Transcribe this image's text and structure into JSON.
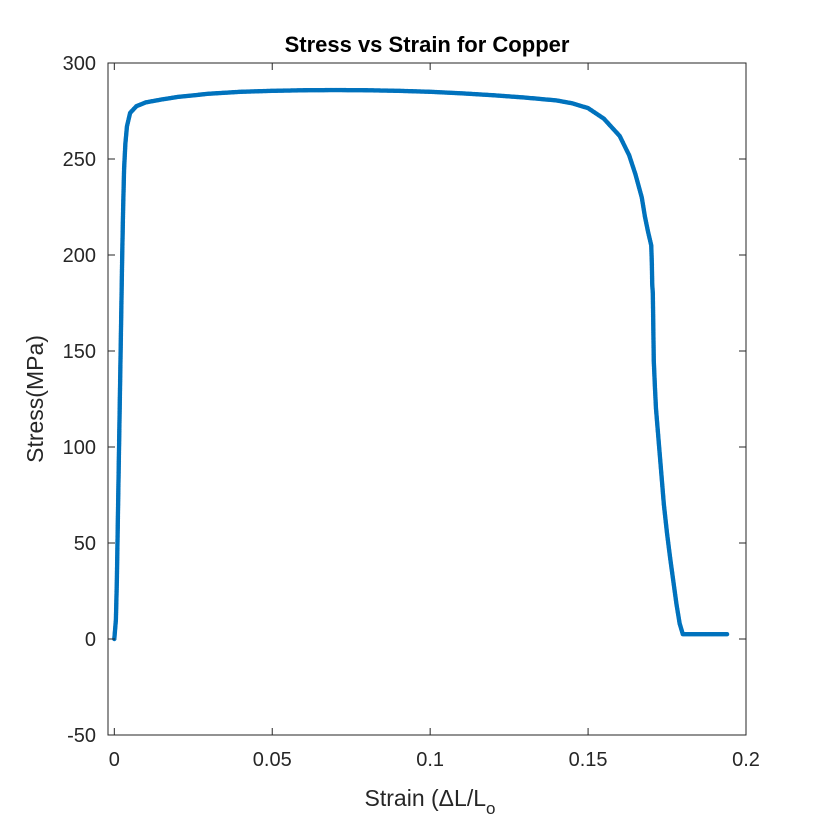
{
  "chart_data": {
    "type": "scatter",
    "title": "Stress vs Strain for Copper",
    "xlabel": "Strain (ΔL/L",
    "xlabel_subscript": "o",
    "ylabel": "Stress(MPa)",
    "xlim": [
      -0.002,
      0.2
    ],
    "ylim": [
      -50,
      300
    ],
    "xticks": [
      0,
      0.05,
      0.1,
      0.15,
      0.2
    ],
    "xtick_labels": [
      "0",
      "0.05",
      "0.1",
      "0.15",
      "0.2"
    ],
    "yticks": [
      -50,
      0,
      50,
      100,
      150,
      200,
      250,
      300
    ],
    "ytick_labels": [
      "-50",
      "0",
      "50",
      "100",
      "150",
      "200",
      "250",
      "300"
    ],
    "grid": false,
    "marker_color": "#0072BD",
    "series": [
      {
        "points": [
          [
            0.0,
            0
          ],
          [
            0.0005,
            10
          ],
          [
            0.0008,
            30
          ],
          [
            0.001,
            50
          ],
          [
            0.0013,
            80
          ],
          [
            0.0016,
            110
          ],
          [
            0.0019,
            140
          ],
          [
            0.0022,
            170
          ],
          [
            0.0025,
            200
          ],
          [
            0.0028,
            225
          ],
          [
            0.0031,
            245
          ],
          [
            0.0035,
            258
          ],
          [
            0.004,
            267
          ],
          [
            0.005,
            274
          ],
          [
            0.007,
            277.5
          ],
          [
            0.01,
            279.5
          ],
          [
            0.015,
            281
          ],
          [
            0.02,
            282.3
          ],
          [
            0.03,
            284
          ],
          [
            0.04,
            285
          ],
          [
            0.05,
            285.5
          ],
          [
            0.06,
            285.8
          ],
          [
            0.07,
            285.9
          ],
          [
            0.08,
            285.8
          ],
          [
            0.09,
            285.5
          ],
          [
            0.1,
            285
          ],
          [
            0.11,
            284.2
          ],
          [
            0.12,
            283.2
          ],
          [
            0.13,
            282
          ],
          [
            0.14,
            280.5
          ],
          [
            0.145,
            279
          ],
          [
            0.15,
            276.5
          ],
          [
            0.155,
            271
          ],
          [
            0.16,
            262
          ],
          [
            0.163,
            252
          ],
          [
            0.165,
            242
          ],
          [
            0.167,
            230
          ],
          [
            0.168,
            220
          ],
          [
            0.169,
            212
          ],
          [
            0.17,
            205
          ],
          [
            0.1702,
            195
          ],
          [
            0.1703,
            185
          ],
          [
            0.1705,
            180
          ],
          [
            0.1708,
            145
          ],
          [
            0.1712,
            130
          ],
          [
            0.1715,
            120
          ],
          [
            0.172,
            110
          ],
          [
            0.1725,
            100
          ],
          [
            0.173,
            90
          ],
          [
            0.174,
            70
          ],
          [
            0.175,
            55
          ],
          [
            0.176,
            42
          ],
          [
            0.177,
            30
          ],
          [
            0.178,
            18
          ],
          [
            0.179,
            8
          ],
          [
            0.18,
            2.5
          ],
          [
            0.185,
            2.5
          ],
          [
            0.19,
            2.5
          ],
          [
            0.194,
            2.5
          ]
        ]
      }
    ]
  }
}
